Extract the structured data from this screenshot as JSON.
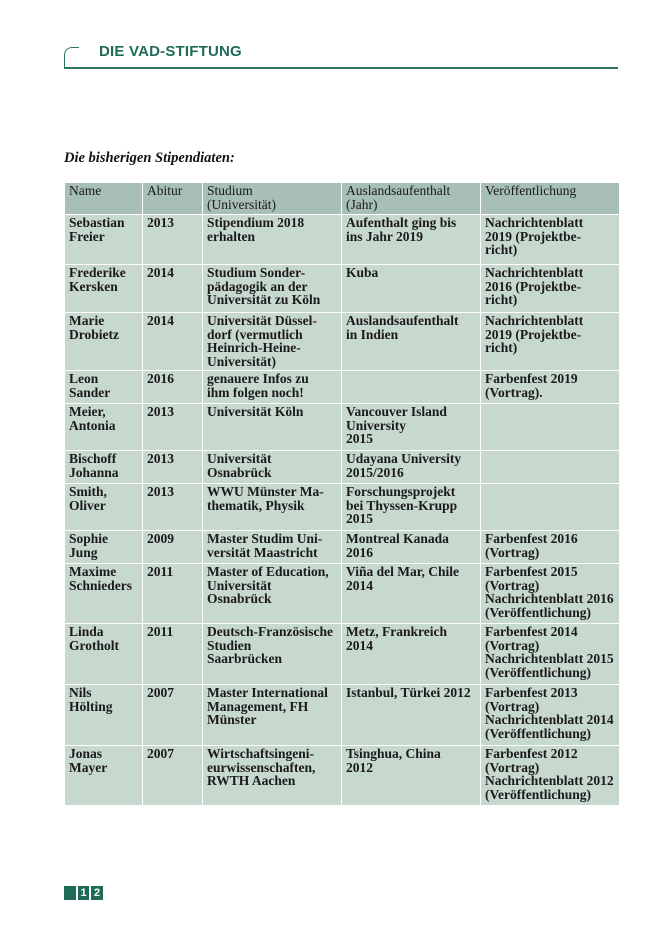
{
  "header": {
    "title": "DIE VAD-STIFTUNG"
  },
  "heading": "Die bisherigen Stipendiaten:",
  "table": {
    "columns": [
      "Name",
      "Abitur",
      "Studium\n(Universität)",
      "Auslandsaufenthalt\n(Jahr)",
      "Veröffentlichung"
    ],
    "rows": [
      [
        "Sebastian\nFreier",
        "2013",
        "Stipendium 2018\nerhalten",
        "Aufenthalt ging bis\nins Jahr 2019",
        "Nachrichtenblatt\n2019 (Projektbe-\nricht)"
      ],
      [
        "Frederike\nKersken",
        "2014",
        "Studium Sonder-\npädagogik an der\nUniversität zu Köln",
        "Kuba",
        "Nachrichtenblatt\n2016 (Projektbe-\nricht)"
      ],
      [
        "Marie\nDrobietz",
        "2014",
        "Universität Düssel-\ndorf (vermutlich\nHeinrich-Heine-\nUniversität)",
        "Auslandsaufenthalt\nin Indien",
        "Nachrichtenblatt\n2019 (Projektbe-\nricht)"
      ],
      [
        "Leon\nSander",
        "2016",
        "genauere Infos zu\nihm folgen noch!",
        "",
        "Farbenfest 2019\n(Vortrag)."
      ],
      [
        "Meier,\nAntonia",
        "2013",
        "Universität Köln",
        "Vancouver Island\nUniversity\n2015",
        ""
      ],
      [
        "Bischoff\nJohanna",
        "2013",
        "Universität\nOsnabrück",
        "Udayana University\n2015/2016",
        ""
      ],
      [
        "Smith,\nOliver",
        "2013",
        "WWU Münster Ma-\nthematik, Physik",
        "Forschungsprojekt\nbei Thyssen-Krupp\n2015",
        ""
      ],
      [
        "Sophie\nJung",
        "2009",
        "Master Studim Uni-\nversität Maastricht",
        "Montreal Kanada\n2016",
        "Farbenfest 2016\n(Vortrag)"
      ],
      [
        "Maxime\nSchnieders",
        "2011",
        "Master of Education,\nUniversität Osnabrück",
        "Viña del Mar, Chile\n2014",
        "Farbenfest 2015\n(Vortrag)\nNachrichtenblatt 2016\n(Veröffentlichung)"
      ],
      [
        "Linda\nGrotholt",
        "2011",
        "Deutsch-Französische\nStudien\nSaarbrücken",
        "Metz, Frankreich\n2014",
        "Farbenfest 2014\n(Vortrag)\nNachrichtenblatt 2015\n(Veröffentlichung)"
      ],
      [
        "Nils Hölting",
        "2007",
        "Master International\nManagement, FH\nMünster",
        "Istanbul, Türkei 2012",
        "Farbenfest 2013\n(Vortrag)\nNachrichtenblatt 2014\n(Veröffentlichung)"
      ],
      [
        "Jonas\nMayer",
        "2007",
        "Wirtschaftsingeni-\neurwissenschaften,\nRWTH Aachen",
        "Tsinghua, China\n2012",
        "Farbenfest 2012\n(Vortrag)\nNachrichtenblatt 2012\n(Veröffentlichung)"
      ]
    ]
  },
  "footer": {
    "page_digits": [
      "1",
      "2"
    ]
  },
  "colors": {
    "brand_green": "#1f6b57",
    "header_cell": "#a7bfb4",
    "body_cell": "#c7d8cf"
  }
}
